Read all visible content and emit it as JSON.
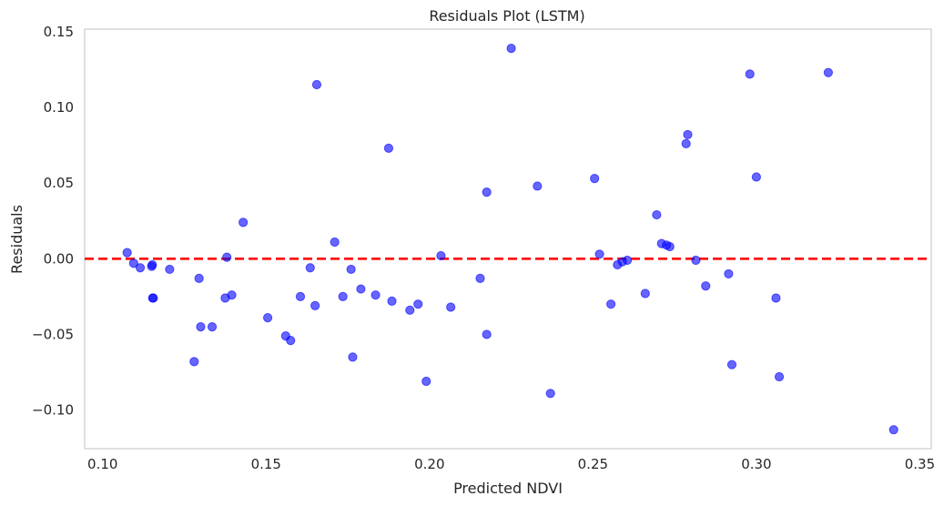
{
  "chart_data": {
    "type": "scatter",
    "title": "Residuals Plot (LSTM)",
    "xlabel": "Predicted NDVI",
    "ylabel": "Residuals",
    "xlim": [
      0.0945,
      0.3535
    ],
    "ylim": [
      -0.1255,
      0.1517
    ],
    "xticks": [
      0.1,
      0.15,
      0.2,
      0.25,
      0.3,
      0.35
    ],
    "xtick_labels": [
      "0.10",
      "0.15",
      "0.20",
      "0.25",
      "0.30",
      "0.35"
    ],
    "yticks": [
      0.15,
      0.1,
      0.05,
      0.0,
      -0.05,
      -0.1
    ],
    "ytick_labels": [
      "0.15",
      "0.10",
      "0.05",
      "0.00",
      "−0.05",
      "−0.10"
    ],
    "grid": false,
    "reference_line": {
      "y": 0.0,
      "color": "#ff0000",
      "style": "dashed"
    },
    "point_color": "#0000ff",
    "points": [
      {
        "x": 0.1075,
        "y": 0.004
      },
      {
        "x": 0.1095,
        "y": -0.003
      },
      {
        "x": 0.1115,
        "y": -0.006
      },
      {
        "x": 0.115,
        "y": -0.005
      },
      {
        "x": 0.1152,
        "y": -0.004
      },
      {
        "x": 0.1153,
        "y": -0.026
      },
      {
        "x": 0.1155,
        "y": -0.026
      },
      {
        "x": 0.1205,
        "y": -0.007
      },
      {
        "x": 0.128,
        "y": -0.068
      },
      {
        "x": 0.1295,
        "y": -0.013
      },
      {
        "x": 0.13,
        "y": -0.045
      },
      {
        "x": 0.1335,
        "y": -0.045
      },
      {
        "x": 0.1375,
        "y": -0.026
      },
      {
        "x": 0.138,
        "y": 0.001
      },
      {
        "x": 0.1395,
        "y": -0.024
      },
      {
        "x": 0.143,
        "y": 0.024
      },
      {
        "x": 0.1505,
        "y": -0.039
      },
      {
        "x": 0.156,
        "y": -0.051
      },
      {
        "x": 0.1575,
        "y": -0.054
      },
      {
        "x": 0.1605,
        "y": -0.025
      },
      {
        "x": 0.1635,
        "y": -0.006
      },
      {
        "x": 0.165,
        "y": -0.031
      },
      {
        "x": 0.1655,
        "y": 0.115
      },
      {
        "x": 0.171,
        "y": 0.011
      },
      {
        "x": 0.1735,
        "y": -0.025
      },
      {
        "x": 0.176,
        "y": -0.007
      },
      {
        "x": 0.1765,
        "y": -0.065
      },
      {
        "x": 0.179,
        "y": -0.02
      },
      {
        "x": 0.1835,
        "y": -0.024
      },
      {
        "x": 0.1875,
        "y": 0.073
      },
      {
        "x": 0.1885,
        "y": -0.028
      },
      {
        "x": 0.194,
        "y": -0.034
      },
      {
        "x": 0.1965,
        "y": -0.03
      },
      {
        "x": 0.199,
        "y": -0.081
      },
      {
        "x": 0.2035,
        "y": 0.002
      },
      {
        "x": 0.2065,
        "y": -0.032
      },
      {
        "x": 0.2155,
        "y": -0.013
      },
      {
        "x": 0.2175,
        "y": 0.044
      },
      {
        "x": 0.2175,
        "y": -0.05
      },
      {
        "x": 0.225,
        "y": 0.139
      },
      {
        "x": 0.233,
        "y": 0.048
      },
      {
        "x": 0.237,
        "y": -0.089
      },
      {
        "x": 0.2505,
        "y": 0.053
      },
      {
        "x": 0.252,
        "y": 0.003
      },
      {
        "x": 0.2555,
        "y": -0.03
      },
      {
        "x": 0.2575,
        "y": -0.004
      },
      {
        "x": 0.259,
        "y": -0.002
      },
      {
        "x": 0.2605,
        "y": -0.001
      },
      {
        "x": 0.266,
        "y": -0.023
      },
      {
        "x": 0.2695,
        "y": 0.029
      },
      {
        "x": 0.271,
        "y": 0.01
      },
      {
        "x": 0.2725,
        "y": 0.009
      },
      {
        "x": 0.2735,
        "y": 0.008
      },
      {
        "x": 0.2785,
        "y": 0.076
      },
      {
        "x": 0.279,
        "y": 0.082
      },
      {
        "x": 0.2815,
        "y": -0.001
      },
      {
        "x": 0.2845,
        "y": -0.018
      },
      {
        "x": 0.2915,
        "y": -0.01
      },
      {
        "x": 0.2925,
        "y": -0.07
      },
      {
        "x": 0.298,
        "y": 0.122
      },
      {
        "x": 0.3,
        "y": 0.054
      },
      {
        "x": 0.306,
        "y": -0.026
      },
      {
        "x": 0.307,
        "y": -0.078
      },
      {
        "x": 0.322,
        "y": 0.123
      },
      {
        "x": 0.342,
        "y": -0.113
      }
    ]
  }
}
